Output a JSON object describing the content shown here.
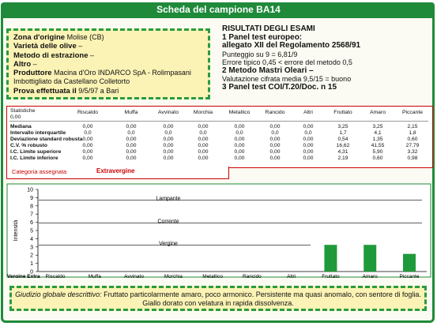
{
  "title": "Scheda del campione BA14",
  "sample": {
    "zona_label": "Zona d'origine",
    "zona_value": "Molise (CB)",
    "varieta_label": "Varietà delle olive",
    "varieta_value": "–",
    "metodo_label": "Metodo di estrazione",
    "metodo_value": "–",
    "altro_label": "Altro",
    "altro_value": "–",
    "produttore_label": "Produttore",
    "produttore_value": "Macina d'Oro INDARCO SpA - Rolimpasani",
    "imbottigliato": "Imbottigliato da Castellano Colletorto",
    "prova_label": "Prova effettuata il",
    "prova_value": "9/5/97 a Bari"
  },
  "results": {
    "heading": "RISULTATI DEGLI ESAMI",
    "line1": "1 Panel test europeo:",
    "line2": "allegato XII del Regolamento 2568/91",
    "line3": "Punteggio su 9 = 6,81/9",
    "line4": "Errore tipico 0,45 < errore del metodo 0,5",
    "line5": "2 Metodo Mastri Oleari –",
    "line6": "Valutazione cifrata media 9,5/15 = buono",
    "line7": "3 Panel test COI/T.20/Doc. n 15"
  },
  "stats": {
    "corner": "Statistiche",
    "corner_value": "0,00",
    "columns": [
      "Riscaldo",
      "Muffa",
      "Avvinato",
      "Morchia",
      "Metallico",
      "Rancido",
      "Altri",
      "Fruttato",
      "Amaro",
      "Piccante"
    ],
    "rows": [
      {
        "label": "Mediana",
        "values": [
          "0,00",
          "0,00",
          "0,00",
          "0,00",
          "0,00",
          "0,00",
          "0,00",
          "3,25",
          "3,25",
          "2,15"
        ]
      },
      {
        "label": "Intervallo interquartile",
        "values": [
          "0,0",
          "0,0",
          "0,0",
          "0,0",
          "0,0",
          "0,0",
          "0,0",
          "1,7",
          "4,1",
          "1,8"
        ]
      },
      {
        "label": "Deviazione standard robusta",
        "values": [
          "0,00",
          "0,00",
          "0,00",
          "0,00",
          "0,00",
          "0,00",
          "0,00",
          "0,54",
          "1,35",
          "0,60"
        ]
      },
      {
        "label": "C.V. % robusto",
        "values": [
          "0,00",
          "0,00",
          "0,00",
          "0,00",
          "0,00",
          "0,00",
          "0,00",
          "16,62",
          "41,55",
          "27,79"
        ]
      },
      {
        "label": "I.C. Limite superiore",
        "values": [
          "0,00",
          "0,00",
          "0,00",
          "0,00",
          "0,00",
          "0,00",
          "0,00",
          "4,31",
          "5,90",
          "3,32"
        ]
      },
      {
        "label": "I.C. Limite inferiore",
        "values": [
          "0,00",
          "0,00",
          "0,00",
          "0,00",
          "0,00",
          "0,00",
          "0,00",
          "2,19",
          "0,60",
          "0,98"
        ]
      }
    ],
    "category_label": "Categoria assegnata",
    "category_value": "Extravergine"
  },
  "chart_data": {
    "type": "bar",
    "categories": [
      "Riscaldo",
      "Muffa",
      "Avvinato",
      "Morchia",
      "Metallico",
      "Rancido",
      "Altri",
      "Fruttato",
      "Amaro",
      "Piccante"
    ],
    "values": [
      0,
      0,
      0,
      0,
      0,
      0,
      0,
      3.25,
      3.25,
      2.15
    ],
    "ylabel": "Intensità",
    "ylim": [
      0,
      10
    ],
    "yticks": [
      "0",
      "1",
      "2",
      "3",
      "4",
      "5",
      "6",
      "7",
      "8",
      "9",
      "10"
    ],
    "grade_axis_label": "Vergine Extra",
    "zones": [
      {
        "label": "Lampante"
      },
      {
        "label": "Corrente"
      },
      {
        "label": "Vergine"
      }
    ],
    "bar_color": "#1f9a3a"
  },
  "giudizio": {
    "label": "Giudizio globale descrittivo:",
    "text1": "Fruttato particolarmente amaro, poco armonico. Persistente ma quasi anomalo, con sentore di foglia.",
    "text2": "Giallo dorato con velatura in rapida dissolvenza."
  }
}
